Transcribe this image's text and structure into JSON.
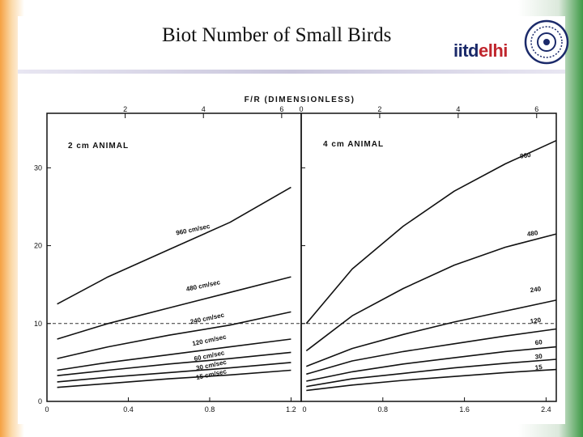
{
  "slide": {
    "title": "Biot Number of Small Birds",
    "logo": {
      "text_a": "iitd",
      "text_b": "elhi"
    }
  },
  "chart_data": [
    {
      "type": "line",
      "panel_label": "2 cm ANIMAL",
      "top_axis_label": "F/R  (DIMENSIONLESS)",
      "top_ticks": [
        "2",
        "4",
        "6"
      ],
      "x_ticks": [
        "0",
        "0.4",
        "0.8",
        "1.2"
      ],
      "y_ticks": [
        "0",
        "10",
        "20",
        "30"
      ],
      "xlim": [
        0,
        1.25
      ],
      "ylim": [
        0,
        37
      ],
      "reference_line_y": 10,
      "series": [
        {
          "name": "960 cm/sec",
          "x": [
            0.05,
            0.3,
            0.6,
            0.9,
            1.2
          ],
          "y": [
            12.5,
            16.0,
            19.5,
            23.0,
            27.5
          ]
        },
        {
          "name": "480 cm/sec",
          "x": [
            0.05,
            0.3,
            0.6,
            0.9,
            1.2
          ],
          "y": [
            8.0,
            10.0,
            12.0,
            14.0,
            16.0
          ]
        },
        {
          "name": "240 cm/sec",
          "x": [
            0.05,
            0.3,
            0.6,
            0.9,
            1.2
          ],
          "y": [
            5.5,
            7.0,
            8.5,
            9.8,
            11.5
          ]
        },
        {
          "name": "120 cm/sec",
          "x": [
            0.05,
            0.3,
            0.6,
            0.9,
            1.2
          ],
          "y": [
            4.0,
            5.0,
            6.0,
            7.0,
            8.0
          ]
        },
        {
          "name": "60 cm/sec",
          "x": [
            0.05,
            0.3,
            0.6,
            0.9,
            1.2
          ],
          "y": [
            3.3,
            4.0,
            4.8,
            5.5,
            6.3
          ]
        },
        {
          "name": "30 cm/sec",
          "x": [
            0.05,
            0.3,
            0.6,
            0.9,
            1.2
          ],
          "y": [
            2.5,
            3.1,
            3.7,
            4.3,
            5.0
          ]
        },
        {
          "name": "15 cm/sec",
          "x": [
            0.05,
            0.3,
            0.6,
            0.9,
            1.2
          ],
          "y": [
            1.8,
            2.3,
            2.9,
            3.4,
            4.0
          ]
        }
      ],
      "annotations": [
        {
          "text": "960 cm/sec",
          "x": 0.72,
          "y": 21.8
        },
        {
          "text": "480 cm/sec",
          "x": 0.77,
          "y": 14.6
        },
        {
          "text": "240 cm/sec",
          "x": 0.79,
          "y": 10.4
        },
        {
          "text": "120 cm/sec",
          "x": 0.8,
          "y": 7.6
        },
        {
          "text": "60 cm/sec",
          "x": 0.8,
          "y": 5.6
        },
        {
          "text": "30 cm/sec",
          "x": 0.81,
          "y": 4.4
        },
        {
          "text": "15 cm/sec",
          "x": 0.81,
          "y": 3.2
        }
      ]
    },
    {
      "type": "line",
      "panel_label": "4 cm ANIMAL",
      "top_ticks": [
        "0",
        "2",
        "4",
        "6"
      ],
      "x_ticks": [
        "0",
        "0.8",
        "1.6",
        "2.4"
      ],
      "xlim": [
        0,
        2.5
      ],
      "ylim": [
        0,
        37
      ],
      "reference_line_y": 10,
      "series": [
        {
          "name": "960",
          "x": [
            0.05,
            0.5,
            1.0,
            1.5,
            2.0,
            2.5
          ],
          "y": [
            10.0,
            17.0,
            22.5,
            27.0,
            30.5,
            33.5
          ]
        },
        {
          "name": "480",
          "x": [
            0.05,
            0.5,
            1.0,
            1.5,
            2.0,
            2.5
          ],
          "y": [
            6.5,
            11.0,
            14.5,
            17.5,
            19.8,
            21.5
          ]
        },
        {
          "name": "240",
          "x": [
            0.05,
            0.5,
            1.0,
            1.5,
            2.0,
            2.5
          ],
          "y": [
            4.5,
            6.8,
            8.6,
            10.2,
            11.6,
            13.0
          ]
        },
        {
          "name": "120",
          "x": [
            0.05,
            0.5,
            1.0,
            1.5,
            2.0,
            2.5
          ],
          "y": [
            3.5,
            5.2,
            6.4,
            7.4,
            8.4,
            9.3
          ]
        },
        {
          "name": "60",
          "x": [
            0.05,
            0.5,
            1.0,
            1.5,
            2.0,
            2.5
          ],
          "y": [
            2.6,
            3.8,
            4.8,
            5.6,
            6.4,
            7.0
          ]
        },
        {
          "name": "30",
          "x": [
            0.05,
            0.5,
            1.0,
            1.5,
            2.0,
            2.5
          ],
          "y": [
            1.9,
            2.9,
            3.6,
            4.3,
            4.9,
            5.4
          ]
        },
        {
          "name": "15",
          "x": [
            0.05,
            0.5,
            1.0,
            1.5,
            2.0,
            2.5
          ],
          "y": [
            1.4,
            2.1,
            2.7,
            3.2,
            3.7,
            4.1
          ]
        }
      ],
      "annotations": [
        {
          "text": "960",
          "x": 2.2,
          "y": 31.3
        },
        {
          "text": "480",
          "x": 2.27,
          "y": 21.3
        },
        {
          "text": "240",
          "x": 2.3,
          "y": 14.1
        },
        {
          "text": "120",
          "x": 2.3,
          "y": 10.1
        },
        {
          "text": "60",
          "x": 2.33,
          "y": 7.3
        },
        {
          "text": "30",
          "x": 2.33,
          "y": 5.5
        },
        {
          "text": "15",
          "x": 2.33,
          "y": 4.1
        }
      ]
    }
  ]
}
